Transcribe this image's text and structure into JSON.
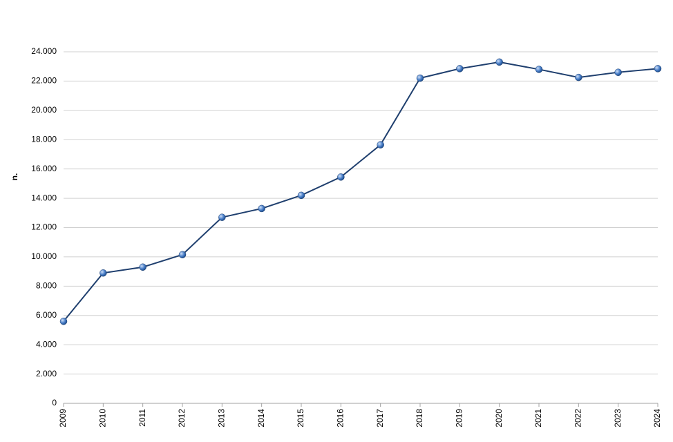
{
  "chart_data": {
    "type": "line",
    "y_label": "n.",
    "categories": [
      "2009",
      "2010",
      "2011",
      "2012",
      "2013",
      "2014",
      "2015",
      "2016",
      "2017",
      "2018",
      "2019",
      "2020",
      "2021",
      "2022",
      "2023",
      "2024"
    ],
    "series": [
      {
        "name": "n.",
        "color": "#1f3f6e",
        "marker_color": "#4a7fc9",
        "values": [
          5600,
          8900,
          9300,
          10150,
          12700,
          13300,
          14200,
          15450,
          17650,
          22200,
          22850,
          23300,
          22800,
          22250,
          22600,
          22850
        ]
      }
    ],
    "ylim": [
      0,
      24000
    ],
    "yticks": [
      0,
      {
        "value": 2000,
        "label": "2.000"
      },
      {
        "value": 4000,
        "label": "4.000"
      },
      {
        "value": 6000,
        "label": "6.000"
      },
      {
        "value": 8000,
        "label": "8.000"
      },
      {
        "value": 10000,
        "label": "10.000"
      },
      {
        "value": 12000,
        "label": "12.000"
      },
      {
        "value": 14000,
        "label": "14.000"
      },
      {
        "value": 16000,
        "label": "16.000"
      },
      {
        "value": 18000,
        "label": "18.000"
      },
      {
        "value": 20000,
        "label": "20.000"
      },
      {
        "value": 22000,
        "label": "22.000"
      },
      {
        "value": 24000,
        "label": "24.000"
      }
    ],
    "grid": true
  }
}
